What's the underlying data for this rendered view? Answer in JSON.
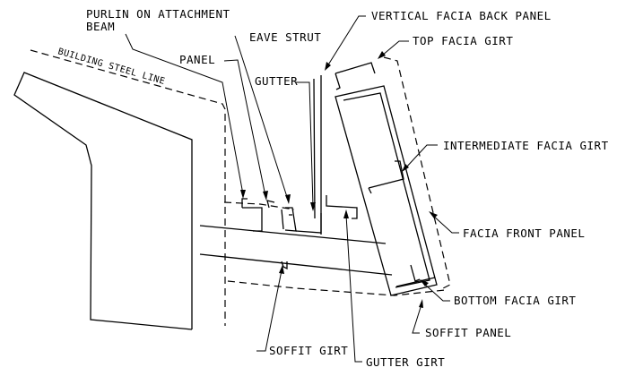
{
  "labels": {
    "purlin_line1": "PURLIN ON ATTACHMENT",
    "purlin_line2": "BEAM",
    "building_steel_line": "BUILDING STEEL LINE",
    "panel": "PANEL",
    "eave_strut": "EAVE STRUT",
    "gutter": "GUTTER",
    "vertical_facia_back_panel": "VERTICAL FACIA BACK PANEL",
    "top_facia_girt": "TOP FACIA GIRT",
    "intermediate_facia_girt": "INTERMEDIATE FACIA GIRT",
    "facia_front_panel": "FACIA FRONT PANEL",
    "bottom_facia_girt": "BOTTOM FACIA GIRT",
    "soffit_panel": "SOFFIT PANEL",
    "soffit_girt": "SOFFIT GIRT",
    "gutter_girt": "GUTTER GIRT"
  },
  "colors": {
    "line": "#000000",
    "background": "#ffffff"
  }
}
